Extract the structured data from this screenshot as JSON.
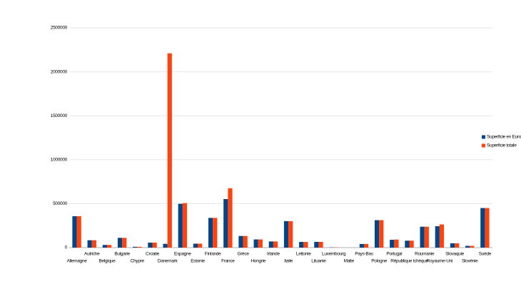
{
  "chart_data": {
    "type": "bar",
    "categories": [
      "Allemagne",
      "Autriche",
      "Belgique",
      "Bulgarie",
      "Chypre",
      "Croatie",
      "Danemark",
      "Espagne",
      "Estonie",
      "Finlande",
      "France",
      "Grèce",
      "Hongrie",
      "Irlande",
      "Italie",
      "Lettonie",
      "Lituanie",
      "Luxembourg",
      "Malte",
      "Pays-Bas",
      "Pologne",
      "Portugal",
      "République tchèque",
      "Roumanie",
      "Royaume-Uni",
      "Slovaquie",
      "Slovénie",
      "Suède"
    ],
    "series": [
      {
        "name": "Superficie en Europe",
        "color": "#004586",
        "values": [
          357000,
          84000,
          30500,
          111000,
          9250,
          56600,
          43000,
          498000,
          45000,
          338000,
          552000,
          132000,
          93000,
          70000,
          301000,
          64600,
          65300,
          2600,
          316,
          41500,
          312000,
          89000,
          79000,
          238000,
          243000,
          49000,
          20000,
          450000
        ]
      },
      {
        "name": "Superficie totale",
        "color": "#ff420e",
        "values": [
          357000,
          84000,
          30500,
          111000,
          9250,
          56600,
          2210000,
          506000,
          45000,
          338000,
          675000,
          132000,
          93000,
          70000,
          301000,
          64600,
          65300,
          2600,
          316,
          41500,
          312000,
          92000,
          79000,
          238000,
          263000,
          49000,
          20000,
          450000
        ]
      }
    ],
    "ylim": [
      0,
      2500000
    ],
    "yticks": [
      0,
      500000,
      1000000,
      1500000,
      2000000,
      2500000
    ],
    "grid": true,
    "legend": "right"
  }
}
